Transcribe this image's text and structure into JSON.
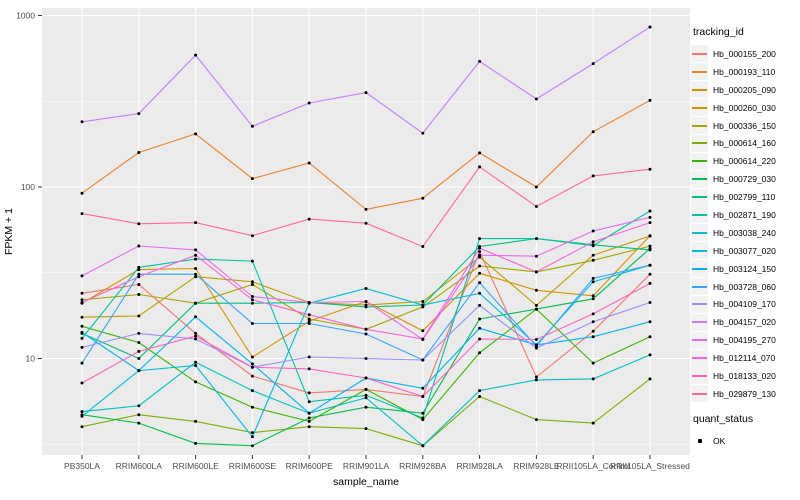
{
  "figure": {
    "y_axis_label": "FPKM + 1",
    "x_axis_label": "sample_name",
    "legend": {
      "tracking_title": "tracking_id",
      "quant_title": "quant_status",
      "quant_ok_label": "OK"
    }
  },
  "chart_data": {
    "type": "line",
    "title": "",
    "xlabel": "sample_name",
    "ylabel": "FPKM + 1",
    "y_scale": "log10",
    "ylim": [
      2.7,
      1100
    ],
    "y_major_ticks": [
      10,
      100,
      1000
    ],
    "y_tick_labels": [
      "10",
      "100",
      "1000"
    ],
    "y_minor_ticks": [
      3.162,
      31.62,
      316.2
    ],
    "grid": true,
    "legend_position": "right",
    "panel_bg": "#EBEBEB",
    "grid_color": "#FFFFFF",
    "point_color": "#000000",
    "axis_text_color": "#4D4D4D",
    "categories": [
      "PB350LA",
      "RRIM600LA",
      "RRIM600LE",
      "RRIM600SE",
      "RRIM600PE",
      "RRIM901LA",
      "RRIM928BA",
      "RRIM928LA",
      "RRIM928LE",
      "RRII105LA_Control",
      "RRII105LA_Stressed"
    ],
    "series": [
      {
        "name": "Hb_000155_200",
        "color": "#F8766D",
        "values": [
          24,
          27,
          14,
          7.9,
          6.3,
          6.6,
          6,
          42,
          7.8,
          14.4,
          31
        ]
      },
      {
        "name": "Hb_000193_110",
        "color": "#E8842A",
        "values": [
          92,
          159,
          204,
          112,
          138,
          74,
          86,
          158,
          100,
          210,
          320
        ]
      },
      {
        "name": "Hb_000205_090",
        "color": "#D89000",
        "values": [
          21,
          33,
          33.5,
          10.2,
          16.5,
          21.5,
          14.5,
          31.4,
          25,
          23.2,
          52
        ]
      },
      {
        "name": "Hb_000260_030",
        "color": "#C09B00",
        "values": [
          17.4,
          17.7,
          30,
          28,
          21.2,
          20.5,
          21.5,
          39,
          20.4,
          40,
          51.8
        ]
      },
      {
        "name": "Hb_000336_150",
        "color": "#A3A500",
        "values": [
          22,
          23.6,
          21,
          27,
          17,
          14.8,
          20,
          34.6,
          32,
          37.4,
          45.2
        ]
      },
      {
        "name": "Hb_000614_160",
        "color": "#7CAE00",
        "values": [
          4,
          4.7,
          4.3,
          3.7,
          4,
          3.9,
          3.1,
          6,
          4.4,
          4.2,
          7.6
        ]
      },
      {
        "name": "Hb_000614_220",
        "color": "#39B600",
        "values": [
          15.4,
          12.4,
          7.3,
          5.2,
          4.3,
          6.6,
          4.4,
          10.8,
          19.4,
          9.4,
          13.4
        ]
      },
      {
        "name": "Hb_000729_030",
        "color": "#00BB4E",
        "values": [
          4.7,
          4.2,
          3.2,
          3.1,
          4.5,
          5.2,
          4.8,
          17,
          19.4,
          22.3,
          43.8
        ]
      },
      {
        "name": "Hb_002799_110",
        "color": "#00BF7D",
        "values": [
          14,
          10,
          21,
          21,
          21.2,
          20,
          20.5,
          45,
          50,
          46,
          43
        ]
      },
      {
        "name": "Hb_002871_190",
        "color": "#00C1A3",
        "values": [
          13.1,
          34,
          38,
          37,
          5.6,
          6.1,
          4.5,
          50,
          50,
          45.5,
          72.5
        ]
      },
      {
        "name": "Hb_003038_240",
        "color": "#00BFC4",
        "values": [
          4.9,
          5.3,
          9.5,
          6.5,
          4.8,
          5.9,
          3.1,
          6.5,
          7.5,
          7.6,
          10.5
        ]
      },
      {
        "name": "Hb_003077_020",
        "color": "#00BAE0",
        "values": [
          4.6,
          8.5,
          9.1,
          3.5,
          21,
          25.6,
          20.5,
          24,
          12,
          28,
          35
        ]
      },
      {
        "name": "Hb_003124_150",
        "color": "#00B0F6",
        "values": [
          14.2,
          8.5,
          17.5,
          9.3,
          4.8,
          7.7,
          6.7,
          15,
          12,
          13.4,
          16.4
        ]
      },
      {
        "name": "Hb_003728_060",
        "color": "#35A2FF",
        "values": [
          9.4,
          31,
          31,
          16,
          16,
          13.9,
          9.8,
          27.7,
          11.8,
          29.3,
          35
        ]
      },
      {
        "name": "Hb_004109_170",
        "color": "#9590FF",
        "values": [
          11.6,
          14,
          13,
          8.9,
          10.2,
          10,
          9.8,
          20.4,
          11.5,
          16.4,
          21.2
        ]
      },
      {
        "name": "Hb_004157_020",
        "color": "#C77CFF",
        "values": [
          240,
          268,
          588,
          226,
          309,
          355,
          206,
          540,
          326,
          524,
          857
        ]
      },
      {
        "name": "Hb_004195_270",
        "color": "#E76BF3",
        "values": [
          30.3,
          45.3,
          43,
          23,
          21.2,
          21.5,
          12.9,
          40,
          39.5,
          55.4,
          66.5
        ]
      },
      {
        "name": "Hb_012114_070",
        "color": "#FA62DB",
        "values": [
          21.2,
          30,
          40,
          22,
          18,
          14.8,
          13,
          44,
          32,
          48,
          62
        ]
      },
      {
        "name": "Hb_018133_020",
        "color": "#FF62BC",
        "values": [
          7.2,
          11,
          13.5,
          8.9,
          8.7,
          7.7,
          6,
          13,
          12.9,
          18.2,
          27.4
        ]
      },
      {
        "name": "Hb_029879_130",
        "color": "#FF6A98",
        "values": [
          70,
          61,
          62,
          52,
          65,
          61.5,
          45,
          131,
          77,
          116,
          127
        ]
      }
    ],
    "quant_status": {
      "label": "OK",
      "marker_color": "#000000"
    }
  }
}
